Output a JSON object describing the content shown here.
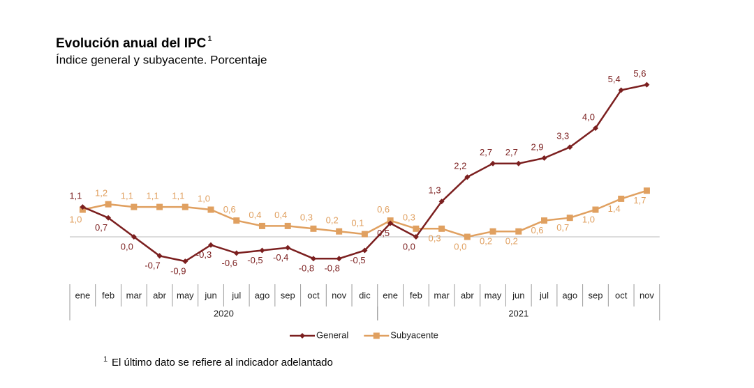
{
  "chart_data": {
    "type": "line",
    "title": "Evolución anual del IPC",
    "title_marker": "1",
    "subtitle": "Índice general y subyacente. Porcentaje",
    "categories": [
      "ene",
      "feb",
      "mar",
      "abr",
      "may",
      "jun",
      "jul",
      "ago",
      "sep",
      "oct",
      "nov",
      "dic",
      "ene",
      "feb",
      "mar",
      "abr",
      "may",
      "jun",
      "jul",
      "ago",
      "sep",
      "oct",
      "nov"
    ],
    "x_groups": [
      {
        "label": "2020",
        "count": 12
      },
      {
        "label": "2021",
        "count": 11
      }
    ],
    "ylim": [
      -1.0,
      6.2
    ],
    "series": [
      {
        "name": "General",
        "color": "#7b1f1f",
        "marker": "diamond",
        "values": [
          1.1,
          0.7,
          0.0,
          -0.7,
          -0.9,
          -0.3,
          -0.6,
          -0.5,
          -0.4,
          -0.8,
          -0.8,
          -0.5,
          0.5,
          0.0,
          1.3,
          2.2,
          2.7,
          2.7,
          2.9,
          3.3,
          4.0,
          5.4,
          5.6
        ],
        "value_labels": [
          "1,1",
          "0,7",
          "0,0",
          "-0,7",
          "-0,9",
          "-0,3",
          "-0,6",
          "-0,5",
          "-0,4",
          "-0,8",
          "-0,8",
          "-0,5",
          "0,5",
          "0,0",
          "1,3",
          "2,2",
          "2,7",
          "2,7",
          "2,9",
          "3,3",
          "4,0",
          "5,4",
          "5,6"
        ]
      },
      {
        "name": "Subyacente",
        "color": "#e0a060",
        "marker": "square",
        "values": [
          1.0,
          1.2,
          1.1,
          1.1,
          1.1,
          1.0,
          0.6,
          0.4,
          0.4,
          0.3,
          0.2,
          0.1,
          0.6,
          0.3,
          0.3,
          0.0,
          0.2,
          0.2,
          0.6,
          0.7,
          1.0,
          1.4,
          1.7
        ],
        "value_labels": [
          "1,0",
          "1,2",
          "1,1",
          "1,1",
          "1,1",
          "1,0",
          "0,6",
          "0,4",
          "0,4",
          "0,3",
          "0,2",
          "0,1",
          "0,6",
          "0,3",
          "0,3",
          "0,0",
          "0,2",
          "0,2",
          "0,6",
          "0,7",
          "1,0",
          "1,4",
          "1,7"
        ]
      }
    ],
    "legend": "bottom",
    "footnote": {
      "marker": "1",
      "text": "El último dato se refiere al indicador adelantado"
    }
  }
}
